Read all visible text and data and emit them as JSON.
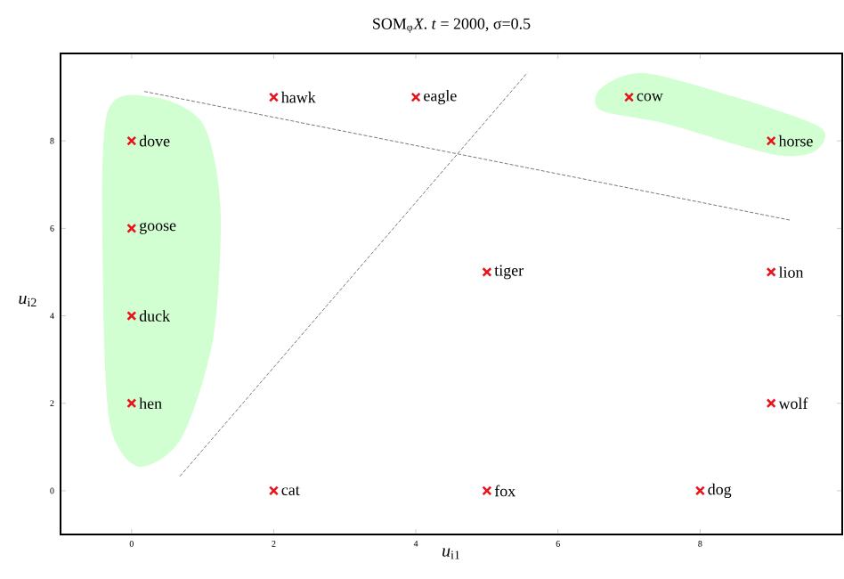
{
  "chart_data": {
    "type": "scatter",
    "title": "SOM$_{φ}$*X*.  *t* = 2000,  σ=0.5",
    "xlabel": "*u*$_{i1}$",
    "ylabel": "*u*$_{i2}$",
    "xlim": [
      -1,
      10
    ],
    "ylim": [
      -1,
      10
    ],
    "xticks": [
      0,
      2,
      4,
      6,
      8
    ],
    "yticks": [
      0,
      2,
      4,
      6,
      8
    ],
    "series": [
      {
        "marker": "cross",
        "color": "#e8141c",
        "x": [
          0,
          0,
          0,
          0,
          2,
          4,
          7,
          9,
          5,
          9,
          9,
          2,
          5,
          8
        ],
        "values": [
          8,
          6,
          4,
          2,
          9,
          9,
          9,
          8,
          5,
          5,
          2,
          0,
          0,
          0
        ]
      },
      {
        "type": "line",
        "marker": "none",
        "line_style": "dashed",
        "color": "#555555",
        "x": [
          0.68,
          5.57
        ],
        "values": [
          0.33,
          9.56
        ]
      },
      {
        "type": "line",
        "marker": "none",
        "line_style": "dashed",
        "color": "#555555",
        "x": [
          0.18,
          9.26
        ],
        "values": [
          9.13,
          6.19
        ]
      }
    ],
    "annotations": [
      {
        "text": "dove",
        "x": 0,
        "y": 8
      },
      {
        "text": "goose",
        "x": 0,
        "y": 6
      },
      {
        "text": "duck",
        "x": 0,
        "y": 4
      },
      {
        "text": "hen",
        "x": 0,
        "y": 2
      },
      {
        "text": "hawk",
        "x": 2,
        "y": 9
      },
      {
        "text": "eagle",
        "x": 4,
        "y": 9
      },
      {
        "text": "cow",
        "x": 7,
        "y": 9
      },
      {
        "text": "horse",
        "x": 9,
        "y": 8
      },
      {
        "text": "tiger",
        "x": 5,
        "y": 5
      },
      {
        "text": "lion",
        "x": 9,
        "y": 5
      },
      {
        "text": "wolf",
        "x": 9,
        "y": 2
      },
      {
        "text": "cat",
        "x": 2,
        "y": 0
      },
      {
        "text": "fox",
        "x": 5,
        "y": 0
      },
      {
        "text": "dog",
        "x": 8,
        "y": 0
      }
    ]
  }
}
